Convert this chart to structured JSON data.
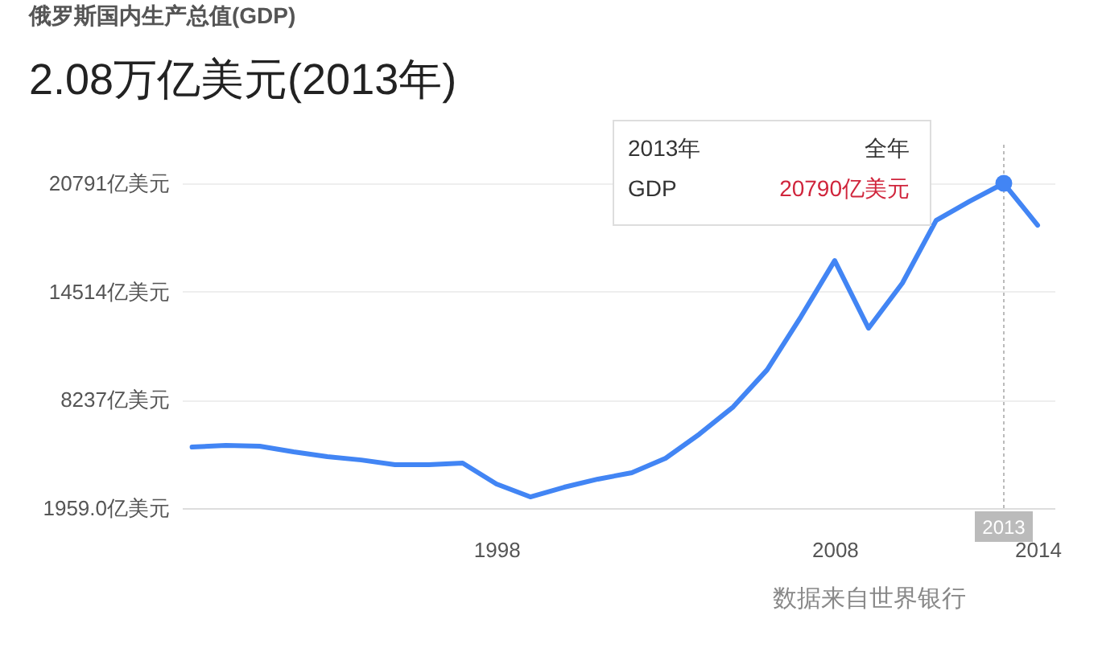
{
  "chart_data": {
    "type": "line",
    "title": "俄罗斯国内生产总值(GDP)",
    "subtitle": "2.08万亿美元(2013年)",
    "x": [
      1989,
      1990,
      1991,
      1992,
      1993,
      1994,
      1995,
      1996,
      1997,
      1998,
      1999,
      2000,
      2001,
      2002,
      2003,
      2004,
      2005,
      2006,
      2007,
      2008,
      2009,
      2010,
      2011,
      2012,
      2013,
      2014
    ],
    "series": [
      {
        "color": "#4285f4",
        "values": [
          5500,
          5590,
          5550,
          5220,
          4940,
          4750,
          4480,
          4480,
          4570,
          3360,
          2610,
          3170,
          3640,
          4010,
          4850,
          6250,
          7830,
          9970,
          13050,
          16310,
          12390,
          15000,
          18640,
          19760,
          20790,
          18360
        ]
      }
    ],
    "xlim": [
      1988.7,
      2014.5
    ],
    "xticks": [
      1998,
      2008,
      2014
    ],
    "ylim": [
      1959,
      20791
    ],
    "yticks": [
      {
        "value": 1959,
        "label": "1959.0亿美元"
      },
      {
        "value": 8237,
        "label": "8237亿美元"
      },
      {
        "value": 14514,
        "label": "14514亿美元"
      },
      {
        "value": 20791,
        "label": "20791亿美元"
      }
    ],
    "grid": "y",
    "marker": "none",
    "line_style": "solid",
    "ref_lines": [
      {
        "axis": "x",
        "value": 2013,
        "label": "2013",
        "line_style": "dotted",
        "color": "#bbbbbb"
      }
    ],
    "annotations": [
      "2013年",
      "全年",
      "GDP",
      "20790亿美元",
      "数据来自世界银行"
    ]
  }
}
